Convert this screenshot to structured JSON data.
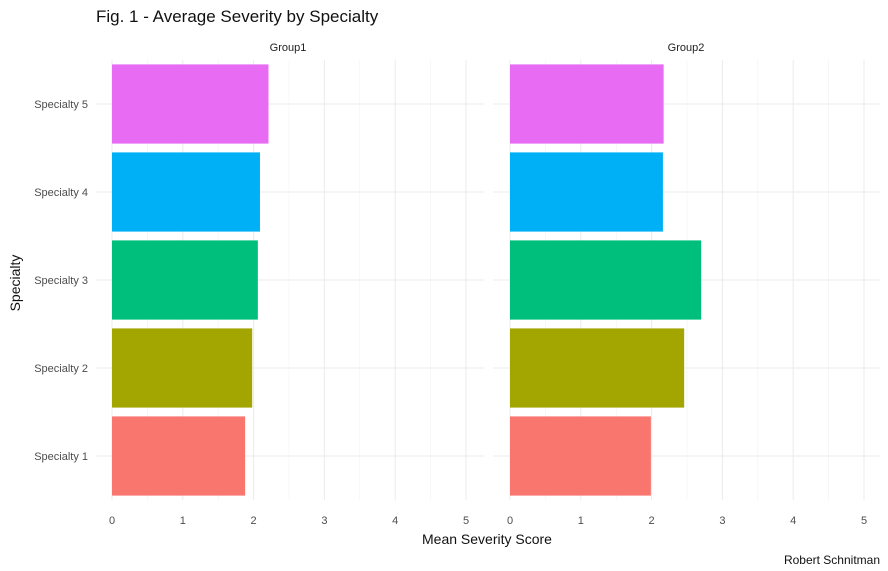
{
  "chart_data": {
    "type": "bar",
    "orientation": "horizontal",
    "title": "Fig. 1 - Average Severity by Specialty",
    "xlabel": "Mean Severity Score",
    "ylabel": "Specialty",
    "caption": "Robert Schnitman",
    "categories": [
      "Specialty 1",
      "Specialty 2",
      "Specialty 3",
      "Specialty 4",
      "Specialty 5"
    ],
    "category_colors": [
      "#F8766D",
      "#A3A500",
      "#00BF7D",
      "#00B0F6",
      "#E76BF3"
    ],
    "xlim": [
      0,
      5
    ],
    "xticks": [
      0,
      1,
      2,
      3,
      4,
      5
    ],
    "grid": true,
    "legend": "none",
    "facets": [
      {
        "name": "Group1",
        "values": [
          1.88,
          1.98,
          2.06,
          2.09,
          2.21
        ]
      },
      {
        "name": "Group2",
        "values": [
          1.99,
          2.46,
          2.7,
          2.16,
          2.17
        ]
      }
    ]
  }
}
